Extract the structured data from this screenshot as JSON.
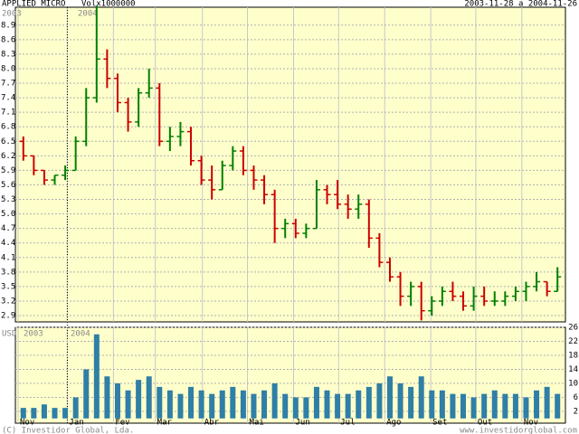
{
  "header": {
    "title": "APPLIED MICRO",
    "volume_label": "Volx1000000",
    "date_range": "2003-11-28 a 2004-11-26",
    "years": [
      "2003",
      "2004"
    ],
    "currency": "USD"
  },
  "footer": {
    "copyright": "(C) Investidor Global, Lda.",
    "website": "www.investidorglobal.com"
  },
  "chart_data": [
    {
      "type": "ohlc",
      "categories": [
        null,
        null,
        null,
        null,
        null,
        null,
        null,
        null,
        null,
        null,
        null,
        null,
        null,
        null,
        null,
        null,
        null,
        null,
        null,
        null,
        null,
        null,
        null,
        null,
        null,
        null,
        null,
        null,
        null,
        null,
        null,
        null,
        null,
        null,
        null,
        null,
        null,
        null,
        null,
        null,
        null,
        null,
        null,
        null,
        null,
        null,
        null,
        null,
        null,
        null,
        null,
        null
      ],
      "open": [
        6.5,
        6.2,
        5.9,
        5.7,
        5.8,
        5.9,
        6.5,
        7.4,
        8.2,
        7.8,
        7.3,
        6.9,
        7.5,
        7.6,
        6.5,
        6.6,
        6.7,
        6.1,
        5.7,
        5.5,
        6.0,
        6.3,
        5.9,
        5.7,
        5.4,
        4.7,
        4.8,
        4.6,
        4.7,
        5.5,
        5.4,
        5.2,
        5.1,
        5.2,
        4.5,
        4.0,
        3.7,
        3.3,
        3.5,
        3.0,
        3.2,
        3.4,
        3.3,
        3.1,
        3.3,
        3.2,
        3.2,
        3.3,
        3.4,
        3.5,
        3.6,
        3.4
      ],
      "high": [
        6.6,
        6.2,
        5.9,
        5.8,
        6.0,
        6.6,
        7.6,
        9.3,
        8.4,
        7.9,
        7.4,
        7.6,
        8.0,
        7.7,
        6.8,
        6.9,
        6.8,
        6.2,
        6.0,
        6.1,
        6.4,
        6.4,
        6.0,
        5.8,
        5.5,
        4.9,
        4.9,
        4.8,
        5.7,
        5.6,
        5.7,
        5.4,
        5.4,
        5.3,
        4.6,
        4.1,
        3.8,
        3.6,
        3.6,
        3.3,
        3.5,
        3.6,
        3.4,
        3.5,
        3.5,
        3.4,
        3.4,
        3.5,
        3.6,
        3.8,
        3.6,
        3.9
      ],
      "low": [
        6.1,
        5.8,
        5.6,
        5.6,
        5.7,
        5.9,
        6.4,
        7.3,
        7.6,
        7.1,
        6.7,
        6.8,
        7.4,
        6.4,
        6.3,
        6.4,
        6.0,
        5.6,
        5.3,
        5.5,
        5.9,
        5.8,
        5.5,
        5.2,
        4.4,
        4.5,
        4.5,
        4.5,
        4.7,
        5.2,
        5.1,
        4.9,
        4.9,
        4.3,
        3.9,
        3.6,
        3.1,
        3.1,
        2.8,
        2.9,
        3.1,
        3.2,
        3.0,
        3.0,
        3.1,
        3.1,
        3.1,
        3.2,
        3.2,
        3.4,
        3.3,
        3.4
      ],
      "close": [
        6.2,
        5.9,
        5.7,
        5.8,
        5.9,
        6.5,
        7.4,
        8.2,
        7.8,
        7.3,
        6.9,
        7.5,
        7.6,
        6.5,
        6.6,
        6.7,
        6.1,
        5.7,
        5.5,
        6.0,
        6.3,
        5.9,
        5.7,
        5.4,
        4.7,
        4.8,
        4.6,
        4.7,
        5.5,
        5.4,
        5.2,
        5.1,
        5.2,
        4.5,
        4.0,
        3.7,
        3.3,
        3.5,
        3.0,
        3.2,
        3.4,
        3.3,
        3.1,
        3.3,
        3.2,
        3.2,
        3.3,
        3.4,
        3.5,
        3.6,
        3.4,
        3.7
      ],
      "up_color": "#008000",
      "down_color": "#cc0000",
      "ylim": [
        2.77,
        9.27
      ],
      "yticks": [
        8.9,
        8.6,
        8.3,
        {
          "value": 8.0,
          "label": "8.0"
        },
        7.7,
        7.4,
        7.1,
        6.8,
        6.5,
        6.2,
        5.9,
        5.6,
        5.3,
        {
          "value": 5.0,
          "label": "5.0"
        },
        4.7,
        4.4,
        4.1,
        3.8,
        3.5,
        3.2,
        2.9
      ],
      "xlim": [
        0,
        52
      ],
      "xticks": [
        {
          "value": 0,
          "label": "Nov"
        },
        {
          "value": 4.7,
          "label": "Jan"
        },
        {
          "value": 9.1,
          "label": "Fev"
        },
        {
          "value": 13.1,
          "label": "Mar"
        },
        {
          "value": 17.6,
          "label": "Abr"
        },
        {
          "value": 21.9,
          "label": "Mai"
        },
        {
          "value": 26.3,
          "label": "Jun"
        },
        {
          "value": 30.6,
          "label": "Jul"
        },
        {
          "value": 35,
          "label": "Ago"
        },
        {
          "value": 39.4,
          "label": "Set"
        },
        {
          "value": 43.7,
          "label": "Out"
        },
        {
          "value": 48.1,
          "label": "Nov"
        }
      ],
      "grid": true
    },
    {
      "type": "bar",
      "values": [
        3,
        3,
        4,
        3,
        3,
        6,
        14,
        24,
        12,
        10,
        8,
        11,
        12,
        9,
        8,
        7,
        9,
        8,
        7,
        8,
        9,
        8,
        7,
        8,
        10,
        7,
        6,
        6,
        9,
        8,
        7,
        7,
        8,
        9,
        10,
        12,
        10,
        9,
        12,
        8,
        8,
        7,
        7,
        6,
        7,
        8,
        7,
        7,
        6,
        8,
        9,
        7
      ],
      "color": "#2f7fa6",
      "ylim": [
        -1.35,
        26
      ],
      "yticks": [
        26,
        22,
        18,
        14,
        10,
        6,
        2
      ],
      "grid": true
    }
  ]
}
